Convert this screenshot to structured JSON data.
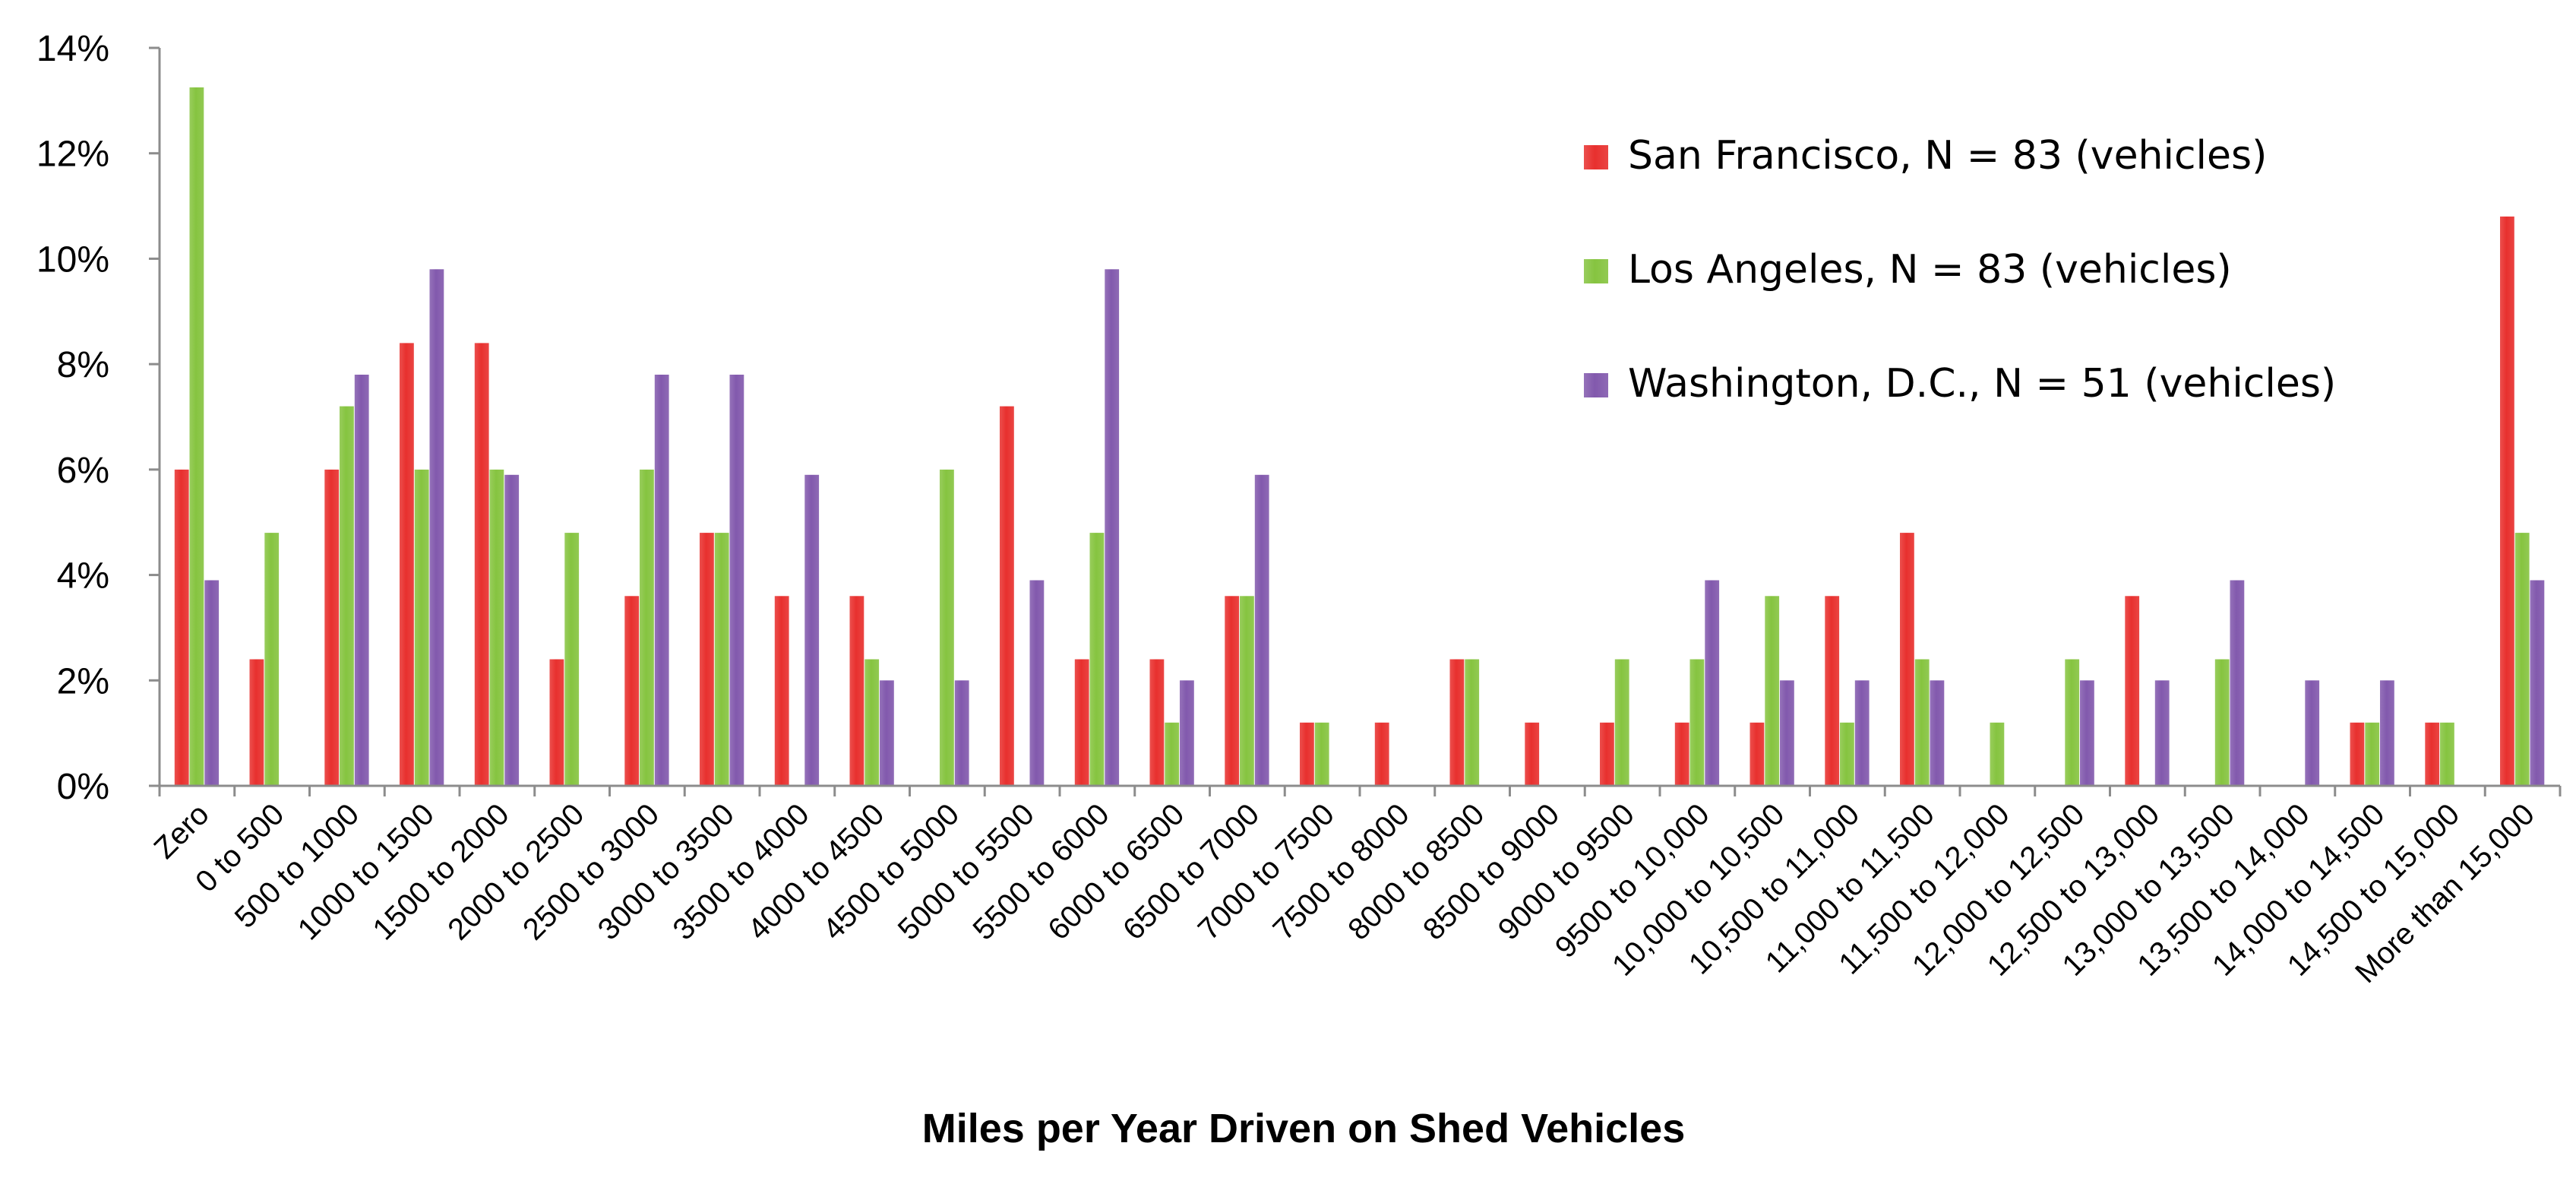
{
  "chart_data": {
    "type": "bar",
    "title": "",
    "xlabel": "Miles per Year Driven on Shed Vehicles",
    "ylabel": "",
    "ylim": [
      0,
      14
    ],
    "y_ticks": [
      "0%",
      "2%",
      "4%",
      "6%",
      "8%",
      "10%",
      "12%",
      "14%"
    ],
    "y_tick_values": [
      0,
      2,
      4,
      6,
      8,
      10,
      12,
      14
    ],
    "gridlines": false,
    "legend_position": "top-right",
    "categories": [
      "Zero",
      "0 to 500",
      "500 to 1000",
      "1000 to 1500",
      "1500 to 2000",
      "2000 to 2500",
      "2500 to 3000",
      "3000 to 3500",
      "3500 to 4000",
      "4000 to 4500",
      "4500 to 5000",
      "5000 to 5500",
      "5500 to 6000",
      "6000 to 6500",
      "6500 to 7000",
      "7000 to 7500",
      "7500 to 8000",
      "8000 to 8500",
      "8500 to 9000",
      "9000 to 9500",
      "9500 to 10,000",
      "10,000 to 10,500",
      "10,500 to 11,000",
      "11,000 to 11,500",
      "11,500 to 12,000",
      "12,000 to 12,500",
      "12,500 to 13,000",
      "13,000 to 13,500",
      "13,500 to 14,000",
      "14,000 to 14,500",
      "14,500 to 15,000",
      "More than 15,000"
    ],
    "series": [
      {
        "name": "San Francisco, N = 83 (vehicles)",
        "color": "#e8302e",
        "values": [
          6.0,
          2.4,
          6.0,
          8.4,
          8.4,
          2.4,
          3.6,
          4.8,
          3.6,
          3.6,
          0,
          7.2,
          2.4,
          2.4,
          3.6,
          1.2,
          1.2,
          2.4,
          1.2,
          1.2,
          1.2,
          1.2,
          3.6,
          4.8,
          0,
          0,
          3.6,
          0,
          0,
          1.2,
          1.2,
          10.8
        ]
      },
      {
        "name": "Los Angeles, N = 83 (vehicles)",
        "color": "#86c440",
        "values": [
          13.25,
          4.8,
          7.2,
          6.0,
          6.0,
          4.8,
          6.0,
          4.8,
          0,
          2.4,
          6.0,
          0,
          4.8,
          1.2,
          3.6,
          1.2,
          0,
          2.4,
          0,
          2.4,
          2.4,
          3.6,
          1.2,
          2.4,
          1.2,
          2.4,
          0,
          2.4,
          0,
          1.2,
          1.2,
          4.8
        ]
      },
      {
        "name": "Washington, D.C., N = 51 (vehicles)",
        "color": "#8259ad",
        "values": [
          3.9,
          0,
          7.8,
          9.8,
          5.9,
          0,
          7.8,
          7.8,
          5.9,
          2.0,
          2.0,
          3.9,
          9.8,
          2.0,
          5.9,
          0,
          0,
          0,
          0,
          0,
          3.9,
          2.0,
          2.0,
          2.0,
          0,
          2.0,
          2.0,
          3.9,
          2.0,
          2.0,
          0,
          3.9
        ]
      }
    ]
  }
}
